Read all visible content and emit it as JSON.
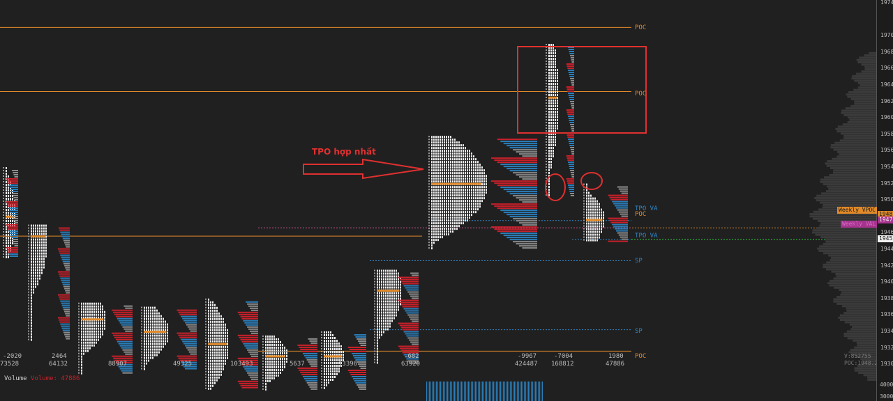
{
  "chart_data": {
    "type": "other",
    "title": "",
    "price_axis_ticks": [
      "1974",
      "1970",
      "1968",
      "1966",
      "1964",
      "1962",
      "1960",
      "1958",
      "1956",
      "1954",
      "1952",
      "1950",
      "1948",
      "1946",
      "1944",
      "1942",
      "1940",
      "1938",
      "1936",
      "1934",
      "1932",
      "1930"
    ],
    "volume_axis_ticks": [
      "4000",
      "3000"
    ],
    "lines": {
      "poc_top": {
        "label": "POC",
        "price": 1971.0
      },
      "poc_mid": {
        "label": "POC",
        "price": 1963.2
      },
      "tpo_va_high": {
        "label": "TPO VA",
        "price": 1947.5
      },
      "poc_right": {
        "label": "POC",
        "price": 1946.6
      },
      "tpo_va_low": {
        "label": "TPO VA",
        "price": 1945.2
      },
      "sp_upper": {
        "label": "SP",
        "price": 1942.6
      },
      "sp_lower": {
        "label": "SP",
        "price": 1934.2
      },
      "poc_bottom": {
        "label": "POC",
        "price": 1931.6
      }
    },
    "profiles": [
      {
        "delta": "-2020",
        "volume": "73528"
      },
      {
        "delta": "2464",
        "volume": "64132"
      },
      {
        "delta": "",
        "volume": "88907"
      },
      {
        "delta": "",
        "volume": "49325"
      },
      {
        "delta": "",
        "volume": "103493"
      },
      {
        "delta": "",
        "volume": "5637"
      },
      {
        "delta": "",
        "volume": "13396"
      },
      {
        "delta": "-682",
        "volume": "63920"
      },
      {
        "delta": "-9967",
        "volume": "424487"
      },
      {
        "delta": "-7004",
        "volume": "168812"
      },
      {
        "delta": "1980",
        "volume": "47886"
      }
    ],
    "right_tags": {
      "weekly_vpoc": "Weekly VPOC",
      "price_1948": "1948",
      "price_1947": "1947",
      "price_1945": "1945",
      "weekly_val": "Weekly VAL",
      "summary_vol": "V:852755",
      "summary_poc": "POC:1948.25"
    }
  },
  "annotation": {
    "text": "TPO hợp nhất"
  },
  "bottom_panel": {
    "title": "Volume",
    "value_label": "Volume: 47886"
  },
  "colors": {
    "background": "#202020",
    "poc_orange": "#e08a2a",
    "tpo_white": "#f0f0f0",
    "volume_red": "#c8202a",
    "volume_blue": "#2a7db8",
    "volume_grey": "#8c8c8c",
    "annotation_red": "#e03030",
    "va_blue": "#2f86c8",
    "tag_magenta": "#a8338f",
    "tag_green": "#2ecc40"
  }
}
